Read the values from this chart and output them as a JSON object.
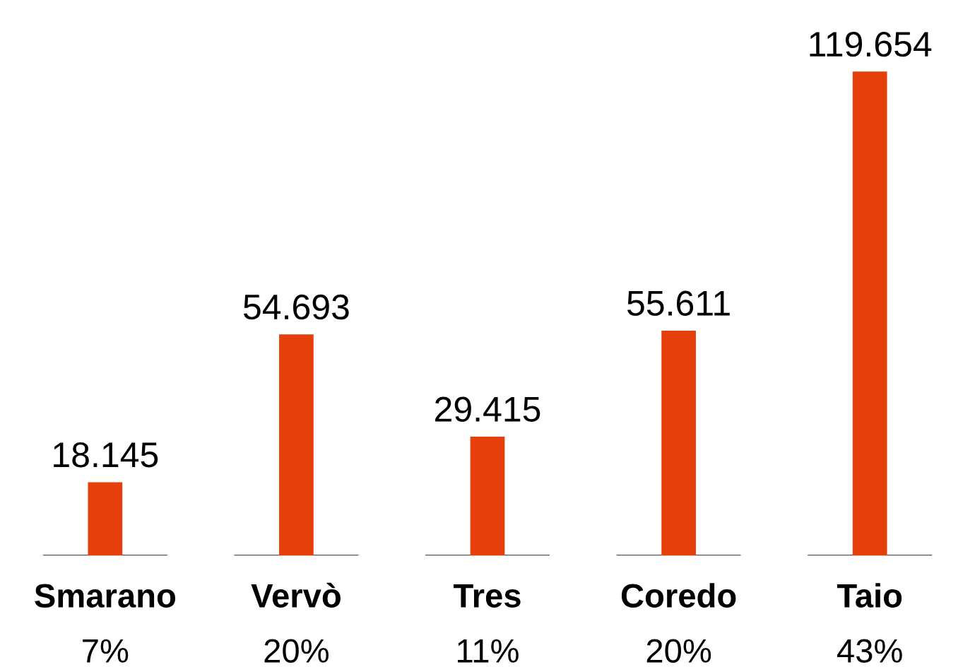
{
  "chart_data": {
    "type": "bar",
    "categories": [
      "Smarano",
      "Vervò",
      "Tres",
      "Coredo",
      "Taio"
    ],
    "values": [
      18145,
      54693,
      29415,
      55611,
      119654
    ],
    "value_labels": [
      "18.145",
      "54.693",
      "29.415",
      "55.611",
      "119.654"
    ],
    "color": "#e5400c",
    "annotations": [
      "7%",
      "20%",
      "11%",
      "20%",
      "43%"
    ],
    "grid": false,
    "legend": false
  }
}
